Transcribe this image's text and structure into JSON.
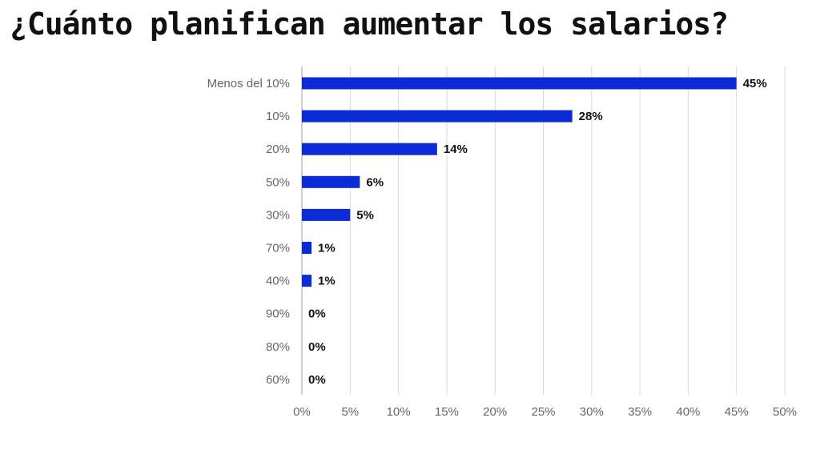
{
  "title": "¿Cuánto planifican aumentar los salarios?",
  "colors": {
    "bar": "#0b2bd6",
    "grid": "#d9d9d9",
    "text": "#111111",
    "axis_text": "#666666"
  },
  "chart_data": {
    "type": "bar",
    "orientation": "horizontal",
    "title": "¿Cuánto planifican aumentar los salarios?",
    "xlabel": "",
    "ylabel": "",
    "categories": [
      "Menos del 10%",
      "10%",
      "20%",
      "50%",
      "30%",
      "70%",
      "40%",
      "90%",
      "80%",
      "60%"
    ],
    "values": [
      45,
      28,
      14,
      6,
      5,
      1,
      1,
      0,
      0,
      0
    ],
    "value_labels": [
      "45%",
      "28%",
      "14%",
      "6%",
      "5%",
      "1%",
      "1%",
      "0%",
      "0%",
      "0%"
    ],
    "xlim": [
      0,
      50
    ],
    "x_ticks": [
      0,
      5,
      10,
      15,
      20,
      25,
      30,
      35,
      40,
      45,
      50
    ],
    "x_tick_labels": [
      "0%",
      "5%",
      "10%",
      "15%",
      "20%",
      "25%",
      "30%",
      "35%",
      "40%",
      "45%",
      "50%"
    ],
    "grid": true,
    "legend": "none"
  }
}
